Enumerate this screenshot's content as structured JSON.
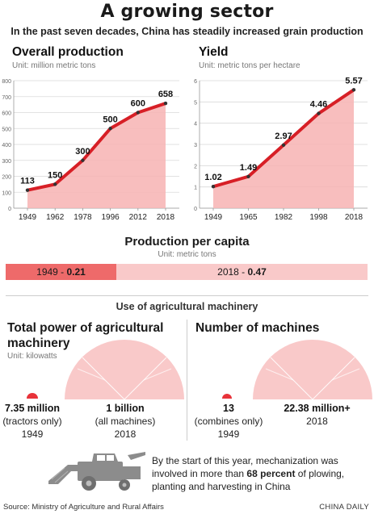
{
  "title": "A growing sector",
  "subtitle": "In the past seven decades, China has steadily increased grain production",
  "colors": {
    "line": "#d71f26",
    "area": "#f7b3b3",
    "bar_dark": "#ee6a6a",
    "bar_light": "#f9c9c9",
    "semi": "#f9c9c9",
    "dot": "#e8333a"
  },
  "chart_data": [
    {
      "type": "area",
      "title": "Overall production",
      "unit": "Unit: million metric tons",
      "categories": [
        "1949",
        "1962",
        "1978",
        "1996",
        "2012",
        "2018"
      ],
      "values": [
        113,
        150,
        300,
        500,
        600,
        658
      ],
      "value_labels": [
        "113",
        "150",
        "300",
        "500",
        "600",
        "658"
      ],
      "ylim": [
        0,
        800
      ],
      "yticks": [
        "0",
        "100",
        "200",
        "300",
        "400",
        "500",
        "600",
        "700",
        "800"
      ],
      "grid": true
    },
    {
      "type": "area",
      "title": "Yield",
      "unit": "Unit: metric tons per hectare",
      "categories": [
        "1949",
        "1965",
        "1982",
        "1998",
        "2018"
      ],
      "values": [
        1.02,
        1.49,
        2.97,
        4.46,
        5.57
      ],
      "value_labels": [
        "1.02",
        "1.49",
        "2.97",
        "4.46",
        "5.57"
      ],
      "ylim": [
        0,
        6
      ],
      "yticks": [
        "0",
        "1",
        "2",
        "3",
        "4",
        "5",
        "6"
      ],
      "grid": true
    },
    {
      "type": "bar",
      "title": "Production per capita",
      "unit": "Unit: metric tons",
      "categories": [
        "1949",
        "2018"
      ],
      "values": [
        0.21,
        0.47
      ],
      "left_year": "1949 - ",
      "left_value": "0.21",
      "right_year": "2018 - ",
      "right_value": "0.47"
    }
  ],
  "machinery": {
    "heading": "Use of agricultural machinery",
    "power": {
      "title_line1": "Total power of agricultural",
      "title_line2": "machinery",
      "unit": "Unit: kilowatts",
      "small_value": "7.35 million",
      "small_note": "(tractors only)",
      "small_year": "1949",
      "big_value": "1 billion",
      "big_note": "(all machines)",
      "big_year": "2018",
      "values": [
        7.35,
        1000
      ],
      "value_unit": "million"
    },
    "machines": {
      "title": "Number of machines",
      "small_value": "13",
      "small_note": "(combines only)",
      "small_year": "1949",
      "big_value": "22.38 million+",
      "big_year": "2018",
      "values": [
        13,
        22380000
      ]
    }
  },
  "note": {
    "text_before": "By the start of this year, mechanization was involved in more than ",
    "highlight": "68 percent",
    "text_after": " of plowing, planting and harvesting in China"
  },
  "source": "Source: Ministry of Agriculture and Rural Affairs",
  "brand": "CHINA DAILY"
}
